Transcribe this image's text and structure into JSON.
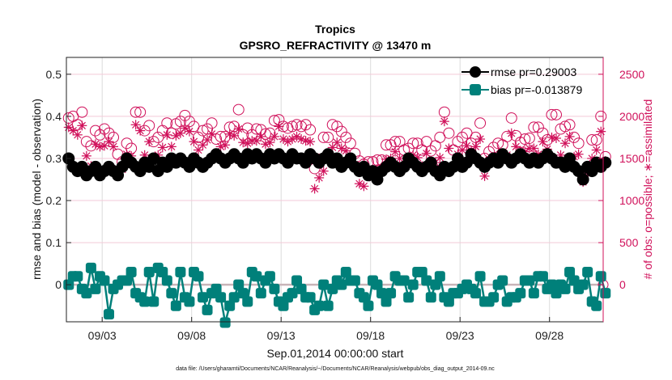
{
  "chart_data": {
    "type": "line",
    "title": "Tropics",
    "subtitle": "GPSRO_REFRACTIVITY @ 13470 m",
    "xlabel": "Sep.01,2014 00:00:00 start",
    "ylabel": "rmse and bias (model - observation)",
    "ylabel_right": "# of obs: o=possible; ∗=assimilated",
    "footnote": "data file: /Users/gharamti/Documents/NCAR/Reanalysis/~/Documents/NCAR/Reanalysis/webpub/obs_diag_output_2014-09.nc",
    "xlim_days": [
      0,
      30
    ],
    "ylim": [
      -0.088,
      0.54
    ],
    "ylim_right": [
      -440,
      2700
    ],
    "grid": true,
    "legend_position": "top-right",
    "x_ticks": [
      {
        "day": 2,
        "label": "09/03"
      },
      {
        "day": 7,
        "label": "09/08"
      },
      {
        "day": 12,
        "label": "09/13"
      },
      {
        "day": 17,
        "label": "09/18"
      },
      {
        "day": 22,
        "label": "09/23"
      },
      {
        "day": 27,
        "label": "09/28"
      }
    ],
    "y_ticks": [
      0,
      0.1,
      0.2,
      0.3,
      0.4,
      0.5
    ],
    "y_tick_labels": [
      "0",
      "0.1",
      "0.2",
      "0.3",
      "0.4",
      "0.5"
    ],
    "y_ticks_right": [
      0,
      500,
      1000,
      1500,
      2000,
      2500
    ],
    "y_tick_labels_right": [
      "0",
      "500",
      "1000",
      "1500",
      "2000",
      "2500"
    ],
    "x_step_days": 0.25,
    "series": [
      {
        "name": "rmse pr=0.29003",
        "axis": "left",
        "color": "#000000",
        "marker": "circle",
        "values": [
          0.3,
          0.28,
          0.27,
          0.28,
          0.26,
          0.27,
          0.28,
          0.26,
          0.27,
          0.28,
          0.27,
          0.26,
          0.28,
          0.3,
          0.29,
          0.28,
          0.27,
          0.29,
          0.28,
          0.3,
          0.27,
          0.29,
          0.28,
          0.3,
          0.29,
          0.3,
          0.29,
          0.28,
          0.3,
          0.29,
          0.28,
          0.29,
          0.3,
          0.31,
          0.3,
          0.29,
          0.3,
          0.31,
          0.3,
          0.29,
          0.31,
          0.3,
          0.31,
          0.3,
          0.29,
          0.31,
          0.3,
          0.31,
          0.3,
          0.29,
          0.31,
          0.3,
          0.3,
          0.29,
          0.31,
          0.3,
          0.29,
          0.3,
          0.31,
          0.29,
          0.3,
          0.28,
          0.29,
          0.3,
          0.28,
          0.27,
          0.28,
          0.26,
          0.27,
          0.25,
          0.27,
          0.28,
          0.29,
          0.28,
          0.27,
          0.28,
          0.3,
          0.29,
          0.28,
          0.27,
          0.28,
          0.29,
          0.27,
          0.26,
          0.28,
          0.27,
          0.28,
          0.3,
          0.28,
          0.29,
          0.31,
          0.3,
          0.29,
          0.28,
          0.29,
          0.3,
          0.29,
          0.31,
          0.3,
          0.29,
          0.3,
          0.31,
          0.3,
          0.29,
          0.3,
          0.29,
          0.3,
          0.31,
          0.3,
          0.29,
          0.29,
          0.28,
          0.3,
          0.28,
          0.27,
          0.25,
          0.28,
          0.27,
          0.29,
          0.28,
          0.29
        ],
        "legend_label": "rmse pr=0.29003"
      },
      {
        "name": "bias pr=-0.013879",
        "axis": "left",
        "color": "#00807a",
        "marker": "square",
        "values": [
          0.0,
          0.02,
          0.02,
          -0.01,
          -0.02,
          0.04,
          -0.01,
          0.02,
          0.01,
          -0.07,
          -0.01,
          0.0,
          0.01,
          0.01,
          0.03,
          -0.02,
          -0.03,
          -0.04,
          0.03,
          -0.04,
          0.04,
          0.03,
          0.01,
          -0.02,
          -0.05,
          0.03,
          -0.03,
          -0.04,
          0.03,
          0.02,
          -0.03,
          -0.06,
          -0.02,
          -0.01,
          -0.03,
          -0.09,
          -0.05,
          -0.03,
          0.0,
          -0.02,
          -0.04,
          0.03,
          0.02,
          -0.02,
          0.01,
          0.02,
          -0.01,
          -0.04,
          -0.05,
          -0.03,
          -0.02,
          0.01,
          -0.01,
          -0.03,
          -0.03,
          -0.06,
          -0.05,
          0.0,
          -0.05,
          -0.01,
          0.01,
          0.0,
          0.03,
          0.01,
          0.01,
          -0.02,
          -0.03,
          -0.05,
          0.01,
          0.0,
          -0.02,
          -0.04,
          -0.02,
          0.02,
          0.01,
          0.01,
          -0.03,
          0.0,
          0.03,
          0.03,
          0.01,
          -0.03,
          0.0,
          0.02,
          -0.03,
          -0.04,
          -0.02,
          -0.02,
          -0.01,
          0.0,
          -0.01,
          -0.02,
          0.02,
          -0.04,
          -0.04,
          -0.03,
          0.0,
          0.01,
          -0.04,
          -0.03,
          -0.03,
          -0.02,
          0.01,
          0.01,
          -0.02,
          0.02,
          0.02,
          -0.01,
          0.0,
          -0.02,
          0.0,
          -0.01,
          0.03,
          0.01,
          -0.01,
          0.0,
          0.03,
          -0.04,
          -0.05,
          0.02,
          -0.02
        ],
        "legend_label": "bias pr=-0.013879"
      },
      {
        "name": "# obs possible",
        "axis": "right",
        "color": "#d0105a",
        "marker": "open-circle",
        "values": [
          1980,
          2000,
          1900,
          2050,
          1700,
          1650,
          1830,
          1780,
          1850,
          1800,
          1750,
          1550,
          1460,
          1680,
          1620,
          2050,
          2050,
          1830,
          1890,
          1700,
          1750,
          1830,
          1920,
          1800,
          1910,
          1940,
          2010,
          1940,
          1880,
          1750,
          1830,
          1850,
          1920,
          1730,
          1760,
          1760,
          1870,
          1880,
          2080,
          1780,
          1860,
          1780,
          1850,
          1840,
          1790,
          1800,
          1950,
          1960,
          1880,
          1860,
          1880,
          1900,
          1880,
          1900,
          1840,
          1380,
          1490,
          1750,
          1750,
          1900,
          1880,
          1820,
          1750,
          1680,
          1560,
          1470,
          1430,
          1460,
          1460,
          1480,
          1480,
          1660,
          1660,
          1700,
          1700,
          1600,
          1620,
          1680,
          1680,
          1600,
          1700,
          1590,
          1650,
          1750,
          2050,
          1800,
          1600,
          1700,
          1750,
          1800,
          1680,
          1750,
          1920,
          1500,
          1580,
          1630,
          1680,
          1660,
          1760,
          1980,
          1770,
          1690,
          1730,
          1740,
          1870,
          1870,
          1800,
          1720,
          2020,
          2020,
          1850,
          1880,
          1900,
          1750,
          1680,
          1300,
          1400,
          1720,
          1720,
          2000,
          1520
        ]
      },
      {
        "name": "# obs assimilated",
        "axis": "right",
        "color": "#d0105a",
        "marker": "asterisk",
        "values": [
          1870,
          1830,
          1780,
          1890,
          1530,
          1410,
          1670,
          1640,
          1650,
          1700,
          1640,
          1380,
          1370,
          1550,
          1530,
          1900,
          1830,
          1540,
          1700,
          1510,
          1540,
          1630,
          1780,
          1640,
          1770,
          1800,
          1860,
          1820,
          1700,
          1600,
          1660,
          1720,
          1790,
          1560,
          1640,
          1660,
          1790,
          1770,
          1850,
          1690,
          1680,
          1710,
          1710,
          1760,
          1670,
          1690,
          1760,
          1880,
          1730,
          1700,
          1730,
          1760,
          1730,
          1710,
          1700,
          1140,
          1270,
          1350,
          1560,
          1630,
          1690,
          1620,
          1590,
          1500,
          1430,
          1200,
          1170,
          1310,
          1270,
          1370,
          1390,
          1490,
          1500,
          1580,
          1500,
          1410,
          1480,
          1540,
          1510,
          1410,
          1560,
          1430,
          1450,
          1510,
          1940,
          1620,
          1400,
          1550,
          1600,
          1650,
          1580,
          1640,
          1730,
          1290,
          1480,
          1470,
          1480,
          1560,
          1540,
          1800,
          1640,
          1590,
          1580,
          1620,
          1620,
          1550,
          1700,
          1610,
          1750,
          1740,
          1540,
          1680,
          1760,
          1520,
          1550,
          1220,
          1330,
          1500,
          1600,
          1820,
          1470
        ]
      }
    ]
  }
}
